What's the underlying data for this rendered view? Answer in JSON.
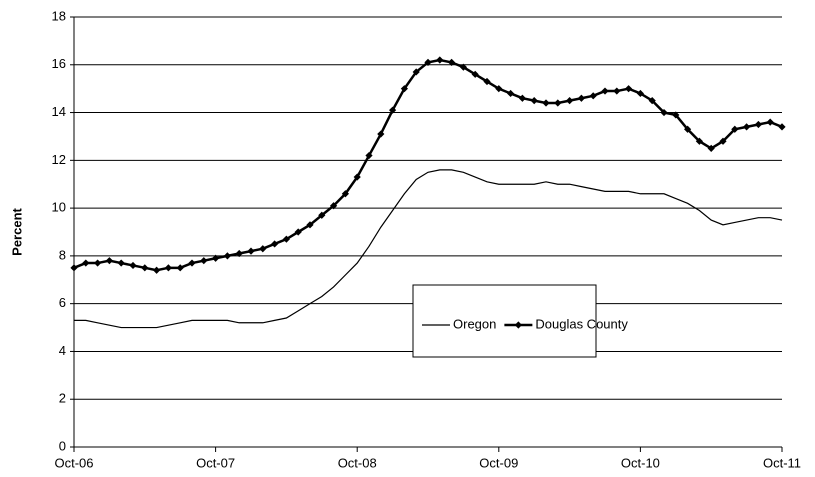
{
  "chart_data": {
    "type": "line",
    "y_label": "Percent",
    "categories": [
      "Oct-06",
      null,
      null,
      null,
      null,
      null,
      null,
      null,
      null,
      null,
      null,
      null,
      "Oct-07",
      null,
      null,
      null,
      null,
      null,
      null,
      null,
      null,
      null,
      null,
      null,
      "Oct-08",
      null,
      null,
      null,
      null,
      null,
      null,
      null,
      null,
      null,
      null,
      null,
      "Oct-09",
      null,
      null,
      null,
      null,
      null,
      null,
      null,
      null,
      null,
      null,
      null,
      "Oct-10",
      null,
      null,
      null,
      null,
      null,
      null,
      null,
      null,
      null,
      null,
      null,
      "Oct-11"
    ],
    "series": [
      {
        "name": "Oregon",
        "color": "#000000",
        "markers": false,
        "values": [
          5.3,
          5.3,
          5.2,
          5.1,
          5.0,
          5.0,
          5.0,
          5.0,
          5.1,
          5.2,
          5.3,
          5.3,
          5.3,
          5.3,
          5.2,
          5.2,
          5.2,
          5.3,
          5.4,
          5.7,
          6.0,
          6.3,
          6.7,
          7.2,
          7.7,
          8.4,
          9.2,
          9.9,
          10.6,
          11.2,
          11.5,
          11.6,
          11.6,
          11.5,
          11.3,
          11.1,
          11.0,
          11.0,
          11.0,
          11.0,
          11.1,
          11.0,
          11.0,
          10.9,
          10.8,
          10.7,
          10.7,
          10.7,
          10.6,
          10.6,
          10.6,
          10.4,
          10.2,
          9.9,
          9.5,
          9.3,
          9.4,
          9.5,
          9.6,
          9.6,
          9.5
        ]
      },
      {
        "name": "Douglas County",
        "color": "#000000",
        "markers": true,
        "values": [
          7.5,
          7.7,
          7.7,
          7.8,
          7.7,
          7.6,
          7.5,
          7.4,
          7.5,
          7.5,
          7.7,
          7.8,
          7.9,
          8.0,
          8.1,
          8.2,
          8.3,
          8.5,
          8.7,
          9.0,
          9.3,
          9.7,
          10.1,
          10.6,
          11.3,
          12.2,
          13.1,
          14.1,
          15.0,
          15.7,
          16.1,
          16.2,
          16.1,
          15.9,
          15.6,
          15.3,
          15.0,
          14.8,
          14.6,
          14.5,
          14.4,
          14.4,
          14.5,
          14.6,
          14.7,
          14.9,
          14.9,
          15.0,
          14.8,
          14.5,
          14.0,
          13.9,
          13.3,
          12.8,
          12.5,
          12.8,
          13.3,
          13.4,
          13.5,
          13.6,
          13.4
        ]
      }
    ],
    "ylim": [
      0,
      18
    ],
    "yticks": [
      0,
      2,
      4,
      6,
      8,
      10,
      12,
      14,
      16,
      18
    ],
    "grid": true
  }
}
